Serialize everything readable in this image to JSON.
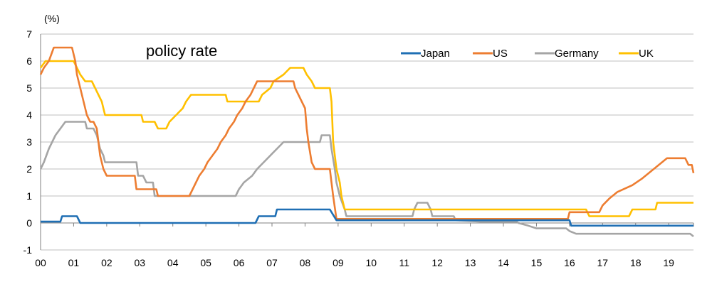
{
  "chart_data": {
    "type": "line",
    "title": "policy rate",
    "unit_label": "(%)",
    "xlabel": "",
    "ylabel": "",
    "x_tick_labels": [
      "00",
      "01",
      "02",
      "03",
      "04",
      "05",
      "06",
      "07",
      "08",
      "09",
      "10",
      "11",
      "12",
      "13",
      "14",
      "15",
      "16",
      "17",
      "18",
      "19"
    ],
    "x_range": [
      2000,
      2019.75
    ],
    "y_ticks": [
      -1,
      0,
      1,
      2,
      3,
      4,
      5,
      6,
      7
    ],
    "ylim": [
      -1,
      7
    ],
    "grid": "horizontal",
    "legend_position": "top-right",
    "series": [
      {
        "name": "Japan",
        "color": "#1f6fb4",
        "points": [
          [
            2000.0,
            0.05
          ],
          [
            2000.6,
            0.05
          ],
          [
            2000.65,
            0.25
          ],
          [
            2001.1,
            0.25
          ],
          [
            2001.2,
            0.0
          ],
          [
            2006.5,
            0.0
          ],
          [
            2006.6,
            0.25
          ],
          [
            2007.1,
            0.25
          ],
          [
            2007.15,
            0.5
          ],
          [
            2008.75,
            0.5
          ],
          [
            2008.85,
            0.3
          ],
          [
            2008.95,
            0.1
          ],
          [
            2010.0,
            0.1
          ],
          [
            2012.0,
            0.1
          ],
          [
            2013.5,
            0.1
          ],
          [
            2016.0,
            0.1
          ],
          [
            2016.05,
            -0.1
          ],
          [
            2019.75,
            -0.1
          ]
        ]
      },
      {
        "name": "US",
        "color": "#ed7d31",
        "points": [
          [
            2000.0,
            5.5
          ],
          [
            2000.1,
            5.75
          ],
          [
            2000.25,
            6.0
          ],
          [
            2000.4,
            6.5
          ],
          [
            2000.95,
            6.5
          ],
          [
            2001.05,
            6.0
          ],
          [
            2001.1,
            5.5
          ],
          [
            2001.2,
            5.0
          ],
          [
            2001.3,
            4.5
          ],
          [
            2001.4,
            4.0
          ],
          [
            2001.5,
            3.75
          ],
          [
            2001.6,
            3.75
          ],
          [
            2001.7,
            3.5
          ],
          [
            2001.75,
            3.0
          ],
          [
            2001.8,
            2.5
          ],
          [
            2001.9,
            2.0
          ],
          [
            2002.0,
            1.75
          ],
          [
            2002.85,
            1.75
          ],
          [
            2002.9,
            1.25
          ],
          [
            2003.5,
            1.25
          ],
          [
            2003.55,
            1.0
          ],
          [
            2004.5,
            1.0
          ],
          [
            2004.6,
            1.25
          ],
          [
            2004.7,
            1.5
          ],
          [
            2004.8,
            1.75
          ],
          [
            2004.95,
            2.0
          ],
          [
            2005.05,
            2.25
          ],
          [
            2005.2,
            2.5
          ],
          [
            2005.35,
            2.75
          ],
          [
            2005.45,
            3.0
          ],
          [
            2005.6,
            3.25
          ],
          [
            2005.7,
            3.5
          ],
          [
            2005.85,
            3.75
          ],
          [
            2005.95,
            4.0
          ],
          [
            2006.1,
            4.25
          ],
          [
            2006.2,
            4.5
          ],
          [
            2006.35,
            4.75
          ],
          [
            2006.45,
            5.0
          ],
          [
            2006.55,
            5.25
          ],
          [
            2007.65,
            5.25
          ],
          [
            2007.7,
            5.0
          ],
          [
            2007.8,
            4.75
          ],
          [
            2007.9,
            4.5
          ],
          [
            2008.0,
            4.25
          ],
          [
            2008.05,
            3.5
          ],
          [
            2008.1,
            3.0
          ],
          [
            2008.2,
            2.25
          ],
          [
            2008.3,
            2.0
          ],
          [
            2008.75,
            2.0
          ],
          [
            2008.8,
            1.5
          ],
          [
            2008.85,
            1.0
          ],
          [
            2008.95,
            0.15
          ],
          [
            2015.95,
            0.15
          ],
          [
            2016.0,
            0.4
          ],
          [
            2016.9,
            0.4
          ],
          [
            2017.0,
            0.65
          ],
          [
            2017.2,
            0.9
          ],
          [
            2017.45,
            1.15
          ],
          [
            2017.9,
            1.4
          ],
          [
            2018.2,
            1.65
          ],
          [
            2018.45,
            1.9
          ],
          [
            2018.7,
            2.15
          ],
          [
            2018.95,
            2.4
          ],
          [
            2019.5,
            2.4
          ],
          [
            2019.6,
            2.15
          ],
          [
            2019.7,
            2.15
          ],
          [
            2019.75,
            1.85
          ]
        ]
      },
      {
        "name": "Germany",
        "color": "#a5a5a5",
        "points": [
          [
            2000.0,
            2.0
          ],
          [
            2000.1,
            2.25
          ],
          [
            2000.25,
            2.75
          ],
          [
            2000.35,
            3.0
          ],
          [
            2000.45,
            3.25
          ],
          [
            2000.6,
            3.5
          ],
          [
            2000.75,
            3.75
          ],
          [
            2001.35,
            3.75
          ],
          [
            2001.4,
            3.5
          ],
          [
            2001.6,
            3.5
          ],
          [
            2001.7,
            3.25
          ],
          [
            2001.75,
            3.0
          ],
          [
            2001.8,
            2.75
          ],
          [
            2001.9,
            2.5
          ],
          [
            2001.95,
            2.25
          ],
          [
            2002.9,
            2.25
          ],
          [
            2002.95,
            1.75
          ],
          [
            2003.1,
            1.75
          ],
          [
            2003.2,
            1.5
          ],
          [
            2003.4,
            1.5
          ],
          [
            2003.45,
            1.0
          ],
          [
            2005.9,
            1.0
          ],
          [
            2006.0,
            1.25
          ],
          [
            2006.15,
            1.5
          ],
          [
            2006.4,
            1.75
          ],
          [
            2006.55,
            2.0
          ],
          [
            2006.75,
            2.25
          ],
          [
            2006.95,
            2.5
          ],
          [
            2007.15,
            2.75
          ],
          [
            2007.35,
            3.0
          ],
          [
            2008.45,
            3.0
          ],
          [
            2008.5,
            3.25
          ],
          [
            2008.75,
            3.25
          ],
          [
            2008.8,
            2.75
          ],
          [
            2008.9,
            2.0
          ],
          [
            2008.95,
            1.5
          ],
          [
            2009.05,
            1.0
          ],
          [
            2009.2,
            0.5
          ],
          [
            2009.25,
            0.25
          ],
          [
            2011.25,
            0.25
          ],
          [
            2011.3,
            0.5
          ],
          [
            2011.4,
            0.75
          ],
          [
            2011.7,
            0.75
          ],
          [
            2011.8,
            0.5
          ],
          [
            2011.85,
            0.25
          ],
          [
            2012.5,
            0.25
          ],
          [
            2012.55,
            0.1
          ],
          [
            2013.3,
            0.05
          ],
          [
            2014.4,
            0.05
          ],
          [
            2014.45,
            0.0
          ],
          [
            2014.75,
            -0.1
          ],
          [
            2015.0,
            -0.2
          ],
          [
            2015.9,
            -0.2
          ],
          [
            2016.0,
            -0.3
          ],
          [
            2016.2,
            -0.4
          ],
          [
            2019.65,
            -0.4
          ],
          [
            2019.75,
            -0.5
          ]
        ]
      },
      {
        "name": "UK",
        "color": "#ffc000",
        "points": [
          [
            2000.0,
            5.75
          ],
          [
            2000.15,
            6.0
          ],
          [
            2001.0,
            6.0
          ],
          [
            2001.1,
            5.75
          ],
          [
            2001.2,
            5.5
          ],
          [
            2001.35,
            5.25
          ],
          [
            2001.55,
            5.25
          ],
          [
            2001.65,
            5.0
          ],
          [
            2001.75,
            4.75
          ],
          [
            2001.85,
            4.5
          ],
          [
            2001.95,
            4.0
          ],
          [
            2003.05,
            4.0
          ],
          [
            2003.1,
            3.75
          ],
          [
            2003.45,
            3.75
          ],
          [
            2003.55,
            3.5
          ],
          [
            2003.8,
            3.5
          ],
          [
            2003.9,
            3.75
          ],
          [
            2004.1,
            4.0
          ],
          [
            2004.3,
            4.25
          ],
          [
            2004.4,
            4.5
          ],
          [
            2004.55,
            4.75
          ],
          [
            2005.6,
            4.75
          ],
          [
            2005.65,
            4.5
          ],
          [
            2006.6,
            4.5
          ],
          [
            2006.7,
            4.75
          ],
          [
            2006.95,
            5.0
          ],
          [
            2007.05,
            5.25
          ],
          [
            2007.35,
            5.5
          ],
          [
            2007.55,
            5.75
          ],
          [
            2007.95,
            5.75
          ],
          [
            2008.05,
            5.5
          ],
          [
            2008.2,
            5.25
          ],
          [
            2008.3,
            5.0
          ],
          [
            2008.75,
            5.0
          ],
          [
            2008.8,
            4.5
          ],
          [
            2008.85,
            3.0
          ],
          [
            2008.95,
            2.0
          ],
          [
            2009.05,
            1.5
          ],
          [
            2009.1,
            1.0
          ],
          [
            2009.2,
            0.5
          ],
          [
            2016.5,
            0.5
          ],
          [
            2016.6,
            0.25
          ],
          [
            2017.8,
            0.25
          ],
          [
            2017.9,
            0.5
          ],
          [
            2018.6,
            0.5
          ],
          [
            2018.65,
            0.75
          ],
          [
            2019.75,
            0.75
          ]
        ]
      }
    ]
  }
}
